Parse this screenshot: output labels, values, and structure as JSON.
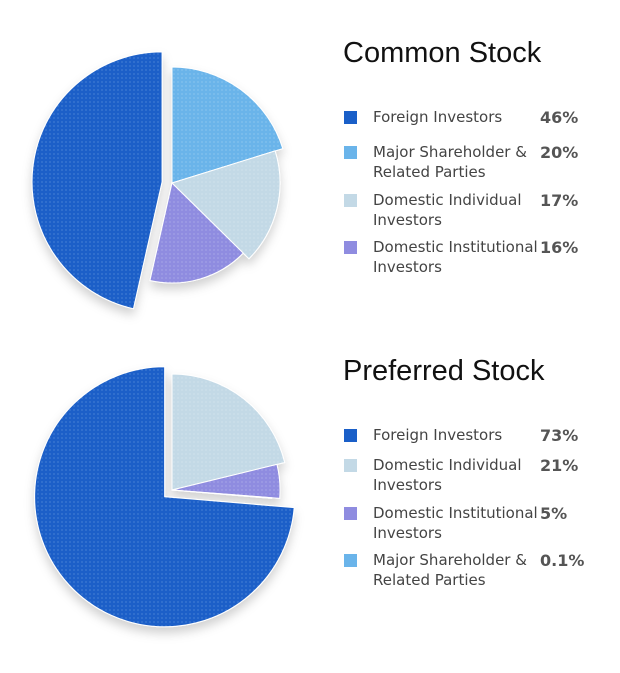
{
  "chart_data": [
    {
      "type": "pie",
      "title": "Common Stock",
      "categories": [
        "Foreign Investors",
        "Major Shareholder & Related Parties",
        "Domestic Individual Investors",
        "Domestic Institutional Investors"
      ],
      "values": [
        46,
        20,
        17,
        16
      ],
      "value_labels": [
        "46%",
        "20%",
        "17%",
        "16%"
      ],
      "colors": [
        "#1a5fc8",
        "#6ab4ea",
        "#c3d9e6",
        "#8f8ce0"
      ]
    },
    {
      "type": "pie",
      "title": "Preferred Stock",
      "categories": [
        "Foreign Investors",
        "Domestic Individual Investors",
        "Domestic Institutional Investors",
        "Major Shareholder & Related Parties"
      ],
      "values": [
        73,
        21,
        5,
        0.1
      ],
      "value_labels": [
        "73%",
        "21%",
        "5%",
        "0.1%"
      ],
      "colors": [
        "#1a5fc8",
        "#c3d9e6",
        "#8f8ce0",
        "#6ab4ea"
      ]
    }
  ]
}
